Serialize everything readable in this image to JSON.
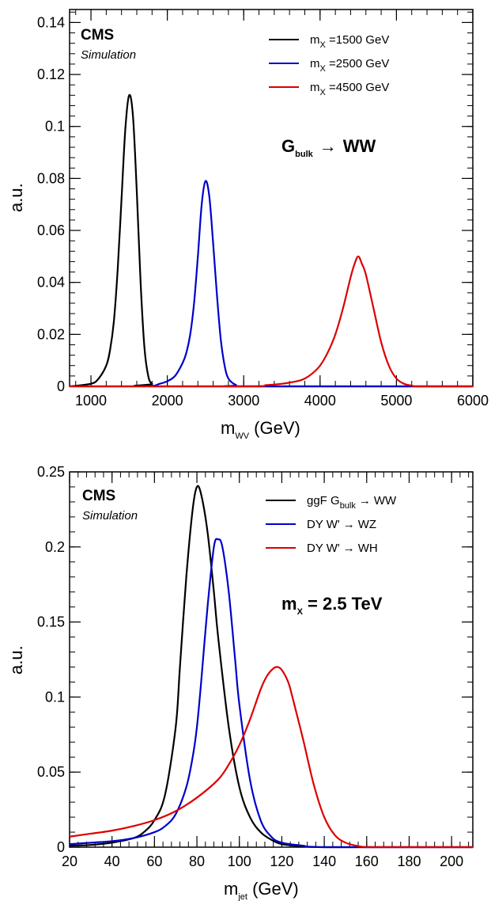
{
  "chart_data": [
    {
      "type": "line",
      "cms_label": "CMS",
      "cms_sublabel": "Simulation",
      "xlabel_main": "m",
      "xlabel_sub": "WV",
      "xlabel_unit": " (GeV)",
      "ylabel": "a.u.",
      "xlim": [
        720,
        6000
      ],
      "ylim": [
        0,
        0.145
      ],
      "xticks": [
        1000,
        2000,
        3000,
        4000,
        5000,
        6000
      ],
      "yticks": [
        0,
        0.02,
        0.04,
        0.06,
        0.08,
        0.1,
        0.12,
        0.14
      ],
      "ytick_labels": [
        "0",
        "0.02",
        "0.04",
        "0.06",
        "0.08",
        "0.1",
        "0.12",
        "0.14"
      ],
      "annotation_main": "G",
      "annotation_sub": "bulk",
      "annotation_rest": "WW",
      "arrow": "→",
      "legend": {
        "placement": "top-right"
      },
      "series": [
        {
          "name_main": "m",
          "name_sub": "X",
          "name_rest": " =1500 GeV",
          "color": "#000000",
          "x": [
            720,
            1000,
            1100,
            1200,
            1250,
            1300,
            1350,
            1400,
            1450,
            1500,
            1550,
            1600,
            1650,
            1700,
            1750,
            1800,
            1900,
            6000
          ],
          "y": [
            0,
            0.001,
            0.003,
            0.008,
            0.014,
            0.025,
            0.045,
            0.072,
            0.099,
            0.112,
            0.104,
            0.075,
            0.04,
            0.015,
            0.004,
            0.001,
            0,
            0
          ]
        },
        {
          "name_main": "m",
          "name_sub": "X",
          "name_rest": " =2500 GeV",
          "color": "#0000cc",
          "x": [
            720,
            1700,
            1900,
            2000,
            2100,
            2200,
            2250,
            2300,
            2350,
            2400,
            2450,
            2500,
            2550,
            2600,
            2650,
            2700,
            2750,
            2800,
            2900,
            3000,
            6000
          ],
          "y": [
            0,
            0,
            0.001,
            0.002,
            0.004,
            0.009,
            0.013,
            0.02,
            0.032,
            0.05,
            0.07,
            0.079,
            0.073,
            0.055,
            0.035,
            0.018,
            0.008,
            0.003,
            0.0005,
            0,
            0
          ]
        },
        {
          "name_main": "m",
          "name_sub": "X",
          "name_rest": " =4500 GeV",
          "color": "#dd0000",
          "x": [
            720,
            3000,
            3300,
            3500,
            3700,
            3800,
            3900,
            4000,
            4100,
            4200,
            4300,
            4400,
            4450,
            4500,
            4550,
            4600,
            4700,
            4800,
            4900,
            5000,
            5100,
            5200,
            5300,
            6000
          ],
          "y": [
            0,
            0,
            0.0005,
            0.001,
            0.002,
            0.003,
            0.005,
            0.008,
            0.013,
            0.02,
            0.03,
            0.042,
            0.047,
            0.05,
            0.047,
            0.043,
            0.03,
            0.017,
            0.008,
            0.003,
            0.001,
            0.0003,
            0,
            0
          ]
        }
      ]
    },
    {
      "type": "line",
      "cms_label": "CMS",
      "cms_sublabel": "Simulation",
      "xlabel_main": "m",
      "xlabel_sub": "jet",
      "xlabel_unit": " (GeV)",
      "ylabel": "a.u.",
      "xlim": [
        20,
        210
      ],
      "ylim": [
        0,
        0.25
      ],
      "xticks": [
        20,
        40,
        60,
        80,
        100,
        120,
        140,
        160,
        180,
        200
      ],
      "yticks": [
        0,
        0.05,
        0.1,
        0.15,
        0.2,
        0.25
      ],
      "ytick_labels": [
        "0",
        "0.05",
        "0.1",
        "0.15",
        "0.2",
        "0.25"
      ],
      "annotation_main": "m",
      "annotation_sub": "X",
      "annotation_rest": " = 2.5 TeV",
      "arrow": "→",
      "legend": {
        "placement": "top-right"
      },
      "series": [
        {
          "name_main": "ggF G",
          "name_sub": "bulk",
          "name_rest": "WW",
          "color": "#000000",
          "x": [
            20,
            30,
            40,
            50,
            55,
            60,
            65,
            70,
            72,
            75,
            78,
            80,
            82,
            85,
            88,
            90,
            95,
            100,
            105,
            110,
            115,
            120,
            130,
            140,
            150,
            210
          ],
          "y": [
            0.001,
            0.0015,
            0.003,
            0.006,
            0.01,
            0.018,
            0.035,
            0.08,
            0.12,
            0.18,
            0.225,
            0.24,
            0.235,
            0.21,
            0.17,
            0.14,
            0.08,
            0.04,
            0.02,
            0.01,
            0.005,
            0.002,
            0.0005,
            0,
            0,
            0
          ]
        },
        {
          "name_main": "DY W'",
          "name_sub": "",
          "name_rest": "WZ",
          "color": "#0000cc",
          "x": [
            20,
            40,
            50,
            60,
            65,
            70,
            75,
            78,
            80,
            82,
            85,
            88,
            90,
            92,
            95,
            98,
            100,
            105,
            110,
            115,
            120,
            130,
            140,
            210
          ],
          "y": [
            0.002,
            0.004,
            0.006,
            0.01,
            0.014,
            0.022,
            0.04,
            0.06,
            0.08,
            0.11,
            0.16,
            0.2,
            0.205,
            0.2,
            0.17,
            0.125,
            0.095,
            0.045,
            0.018,
            0.007,
            0.003,
            0.001,
            0,
            0
          ]
        },
        {
          "name_main": "DY W'",
          "name_sub": "",
          "name_rest": "WH",
          "color": "#dd0000",
          "x": [
            20,
            30,
            40,
            50,
            60,
            70,
            80,
            90,
            95,
            100,
            105,
            110,
            113,
            116,
            118,
            120,
            123,
            125,
            130,
            135,
            140,
            145,
            150,
            155,
            160,
            170,
            210
          ],
          "y": [
            0.007,
            0.009,
            0.011,
            0.014,
            0.018,
            0.024,
            0.033,
            0.045,
            0.055,
            0.068,
            0.085,
            0.105,
            0.114,
            0.119,
            0.12,
            0.118,
            0.11,
            0.1,
            0.072,
            0.042,
            0.02,
            0.008,
            0.003,
            0.001,
            0,
            0,
            0
          ]
        }
      ]
    }
  ]
}
